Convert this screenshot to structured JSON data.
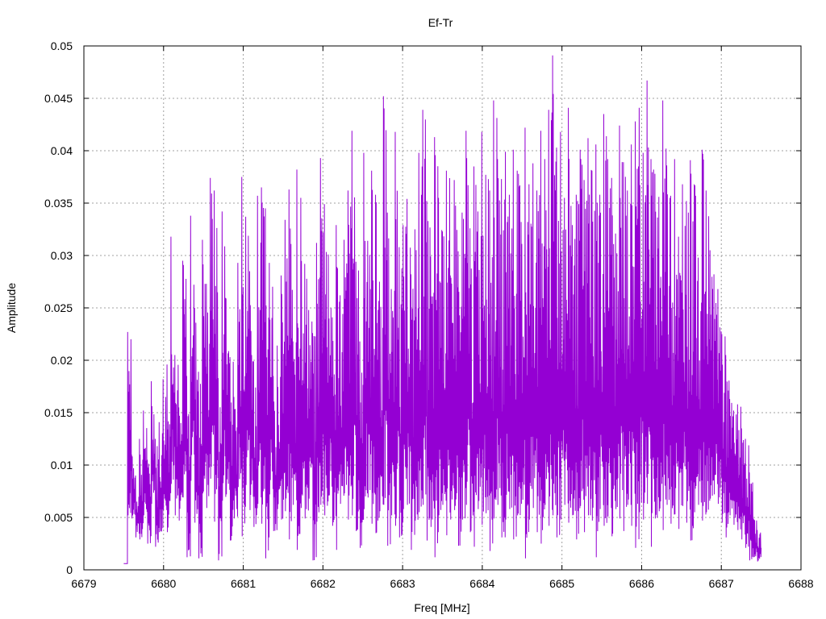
{
  "chart_data": {
    "type": "line",
    "title": "Ef-Tr",
    "xlabel": "Freq [MHz]",
    "ylabel": "Amplitude",
    "xlim": [
      6679,
      6688
    ],
    "ylim": [
      0,
      0.05
    ],
    "x_ticks": [
      "6679",
      "6680",
      "6681",
      "6682",
      "6683",
      "6684",
      "6685",
      "6686",
      "6687",
      "6688"
    ],
    "y_ticks": [
      "0",
      "0.005",
      "0.01",
      "0.015",
      "0.02",
      "0.025",
      "0.03",
      "0.035",
      "0.04",
      "0.045",
      "0.05"
    ],
    "grid": true,
    "grid_style": "dotted",
    "series_color": "#9400D3",
    "series": [
      {
        "x_start": 6679.5,
        "x_end": 6687.5,
        "values": [
          0.0006,
          0.0227,
          0.011,
          0.009,
          0.0125,
          0.0152,
          0.0105,
          0.018,
          0.0125,
          0.0141,
          0.0182,
          0.0196,
          0.0318,
          0.0205,
          0.0155,
          0.0295,
          0.0185,
          0.0338,
          0.025,
          0.0189,
          0.0315,
          0.0273,
          0.0374,
          0.0362,
          0.0183,
          0.0342,
          0.0259,
          0.0203,
          0.0165,
          0.0293,
          0.0375,
          0.0337,
          0.0285,
          0.0199,
          0.0357,
          0.0365,
          0.0345,
          0.0293,
          0.0185,
          0.0214,
          0.0281,
          0.0334,
          0.0363,
          0.0218,
          0.0382,
          0.0355,
          0.0292,
          0.0248,
          0.0226,
          0.0312,
          0.0393,
          0.0349,
          0.0301,
          0.0241,
          0.0329,
          0.0262,
          0.0315,
          0.0362,
          0.0419,
          0.0294,
          0.0218,
          0.0398,
          0.0314,
          0.0381,
          0.0358,
          0.0275,
          0.0452,
          0.0341,
          0.0268,
          0.0418,
          0.0308,
          0.0329,
          0.0354,
          0.0282,
          0.0325,
          0.0398,
          0.0439,
          0.0352,
          0.0299,
          0.0413,
          0.0355,
          0.0323,
          0.0381,
          0.0281,
          0.0372,
          0.0304,
          0.0341,
          0.0419,
          0.0326,
          0.0385,
          0.0342,
          0.0418,
          0.0377,
          0.0362,
          0.0448,
          0.0392,
          0.0373,
          0.0399,
          0.0358,
          0.0401,
          0.0381,
          0.0332,
          0.0422,
          0.0368,
          0.0388,
          0.0362,
          0.0419,
          0.0392,
          0.0439,
          0.0491,
          0.0403,
          0.0418,
          0.0355,
          0.0441,
          0.0329,
          0.0358,
          0.0401,
          0.0372,
          0.0412,
          0.0381,
          0.0406,
          0.0358,
          0.0435,
          0.0392,
          0.0374,
          0.0321,
          0.0424,
          0.0389,
          0.0362,
          0.0406,
          0.0428,
          0.0441,
          0.0398,
          0.0467,
          0.0392,
          0.0378,
          0.0356,
          0.0448,
          0.0386,
          0.0357,
          0.0392,
          0.0318,
          0.0368,
          0.0352,
          0.0391,
          0.0368,
          0.0298,
          0.0401,
          0.0362,
          0.0305,
          0.0282,
          0.0268,
          0.0225,
          0.0205,
          0.0163,
          0.0152,
          0.0158,
          0.0135,
          0.0125,
          0.0093,
          0.0049,
          0.0038,
          0.0021
        ],
        "mins": [
          0.0006,
          0.0052,
          0.0049,
          0.0031,
          0.0029,
          0.0052,
          0.0025,
          0.0063,
          0.0022,
          0.0036,
          0.0057,
          0.0036,
          0.0082,
          0.0052,
          0.0047,
          0.0069,
          0.0012,
          0.0085,
          0.0045,
          0.0011,
          0.0073,
          0.0059,
          0.0087,
          0.0046,
          0.0009,
          0.0066,
          0.0072,
          0.0028,
          0.0049,
          0.0079,
          0.0032,
          0.0081,
          0.0057,
          0.0041,
          0.0063,
          0.0044,
          0.0011,
          0.0072,
          0.0037,
          0.0058,
          0.0048,
          0.0056,
          0.0029,
          0.0062,
          0.0019,
          0.0059,
          0.0049,
          0.0068,
          0.0009,
          0.0046,
          0.0062,
          0.0052,
          0.0071,
          0.0042,
          0.0019,
          0.0063,
          0.0073,
          0.0048,
          0.0052,
          0.0037,
          0.0021,
          0.0058,
          0.0069,
          0.0044,
          0.0035,
          0.0056,
          0.0062,
          0.0023,
          0.0052,
          0.0042,
          0.0031,
          0.0058,
          0.0062,
          0.0019,
          0.0047,
          0.0055,
          0.0062,
          0.0028,
          0.0041,
          0.0012,
          0.0052,
          0.0062,
          0.0033,
          0.0048,
          0.0057,
          0.0023,
          0.0048,
          0.0062,
          0.0036,
          0.0022,
          0.0058,
          0.0043,
          0.0054,
          0.0018,
          0.0049,
          0.0062,
          0.0031,
          0.0048,
          0.0058,
          0.0029,
          0.0052,
          0.0063,
          0.0011,
          0.0048,
          0.0059,
          0.0036,
          0.0025,
          0.0062,
          0.0042,
          0.0052,
          0.0031,
          0.0048,
          0.0062,
          0.0045,
          0.0052,
          0.0029,
          0.0061,
          0.0036,
          0.0052,
          0.0047,
          0.0012,
          0.0058,
          0.0042,
          0.0051,
          0.0032,
          0.0058,
          0.0049,
          0.0037,
          0.0062,
          0.0042,
          0.0021,
          0.0055,
          0.0048,
          0.0063,
          0.0022,
          0.0049,
          0.0056,
          0.0038,
          0.0062,
          0.0044,
          0.0053,
          0.0039,
          0.0061,
          0.0045,
          0.0028,
          0.0055,
          0.0062,
          0.0047,
          0.0055,
          0.0068,
          0.0072,
          0.0063,
          0.0045,
          0.0031,
          0.0052,
          0.0043,
          0.0038,
          0.0029,
          0.0021,
          0.0009,
          0.0012,
          0.0008
        ]
      }
    ]
  }
}
